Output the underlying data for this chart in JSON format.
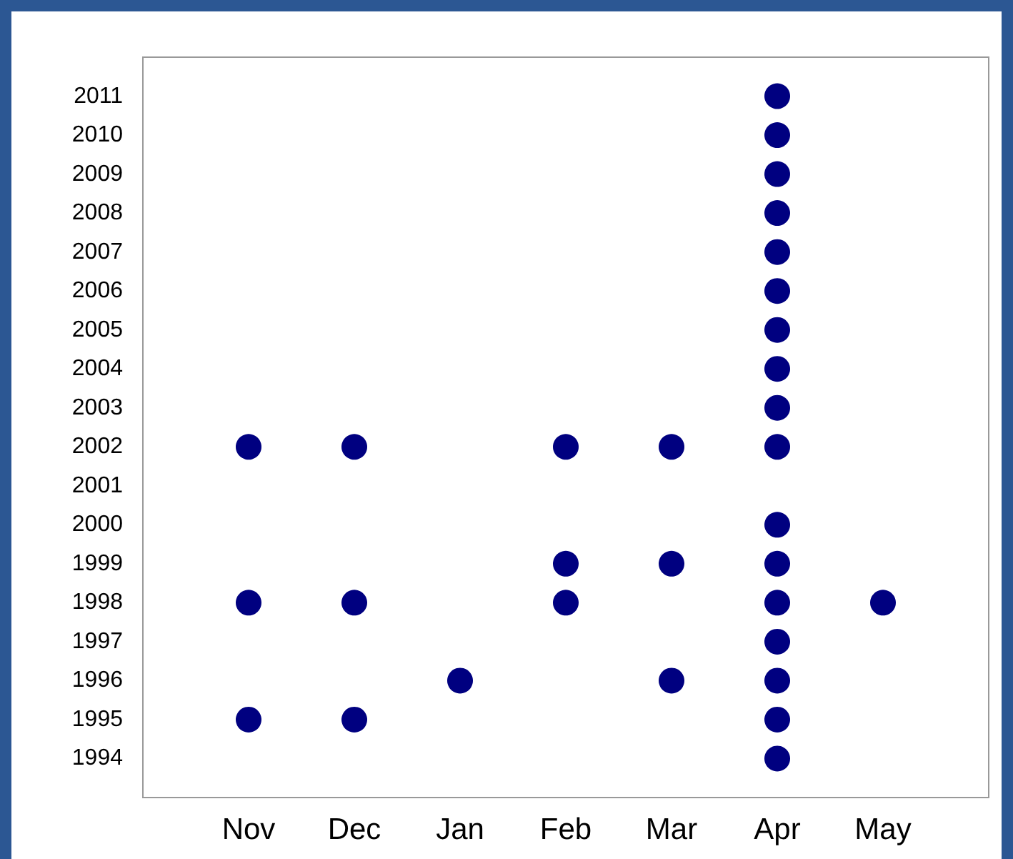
{
  "chart_data": {
    "type": "scatter",
    "categories": [
      null,
      "Nov",
      "Dec",
      "Jan",
      "Feb",
      "Mar",
      "Apr",
      "May",
      null
    ],
    "series": [
      {
        "color": "#000080",
        "x": [
          "Nov",
          "Nov",
          "Nov",
          "Dec",
          "Dec",
          "Dec",
          "Jan",
          "Feb",
          "Feb",
          "Feb",
          "Mar",
          "Mar",
          "Mar",
          "Apr",
          "Apr",
          "Apr",
          "Apr",
          "Apr",
          "Apr",
          "Apr",
          "Apr",
          "Apr",
          "Apr",
          "Apr",
          "Apr",
          "Apr",
          "Apr",
          "Apr",
          "Apr",
          "Apr",
          "May"
        ],
        "values": [
          2002,
          1998,
          1995,
          2002,
          1998,
          1995,
          1996,
          2002,
          1999,
          1998,
          2002,
          1999,
          1996,
          2011,
          2010,
          2009,
          2008,
          2007,
          2006,
          2005,
          2004,
          2003,
          2002,
          2000,
          1999,
          1998,
          1997,
          1996,
          1995,
          1994,
          1998
        ]
      }
    ],
    "ylim": [
      1993,
      2012
    ],
    "yticks": [
      1994,
      1995,
      1996,
      1997,
      1998,
      1999,
      2000,
      2001,
      2002,
      2003,
      2004,
      2005,
      2006,
      2007,
      2008,
      2009,
      2010,
      2011
    ],
    "grid": false,
    "marker": "circle"
  }
}
